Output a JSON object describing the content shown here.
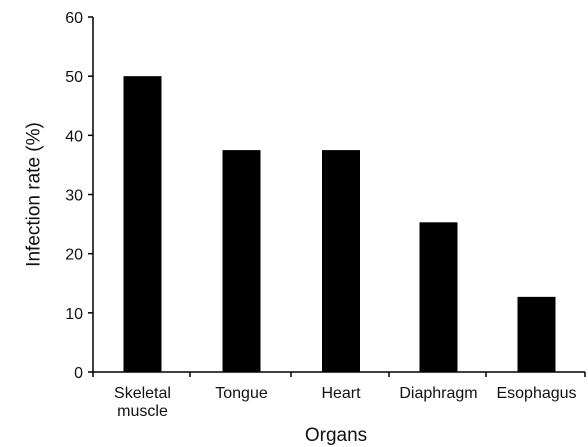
{
  "chart_data": {
    "type": "bar",
    "categories": [
      [
        "Skeletal",
        "muscle"
      ],
      [
        "Tongue"
      ],
      [
        "Heart"
      ],
      [
        "Diaphragm"
      ],
      [
        "Esophagus"
      ]
    ],
    "values": [
      50,
      37.5,
      37.5,
      25.3,
      12.7
    ],
    "xlabel": "Organs",
    "ylabel": "Infection rate (%)",
    "ylim": [
      0,
      60
    ],
    "yticks": [
      "0",
      "10",
      "20",
      "30",
      "40",
      "50",
      "60"
    ],
    "bar_color": "#000000",
    "grid": false
  }
}
